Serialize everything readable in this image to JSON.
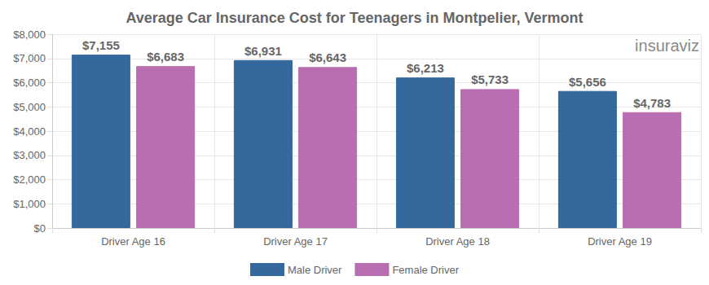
{
  "chart_data": {
    "type": "bar",
    "title": "Average Car Insurance Cost for Teenagers in Montpelier, Vermont",
    "annotations": [
      "insuraviz"
    ],
    "categories": [
      "Driver Age 16",
      "Driver Age 17",
      "Driver Age 18",
      "Driver Age 19"
    ],
    "series": [
      {
        "name": "Male Driver",
        "color": "#35699d",
        "values": [
          7155,
          6931,
          6213,
          5656
        ],
        "value_labels": [
          "$7,155",
          "$6,931",
          "$6,213",
          "$5,656"
        ]
      },
      {
        "name": "Female Driver",
        "color": "#b86eb0",
        "values": [
          6683,
          6643,
          5733,
          4783
        ],
        "value_labels": [
          "$6,683",
          "$6,643",
          "$5,733",
          "$4,783"
        ]
      }
    ],
    "ylim": [
      0,
      8000
    ],
    "yticks": [
      {
        "value": 0,
        "label": "$0"
      },
      {
        "value": 1000,
        "label": "$1,000"
      },
      {
        "value": 2000,
        "label": "$2,000"
      },
      {
        "value": 3000,
        "label": "$3,000"
      },
      {
        "value": 4000,
        "label": "$4,000"
      },
      {
        "value": 5000,
        "label": "$5,000"
      },
      {
        "value": 6000,
        "label": "$6,000"
      },
      {
        "value": 7000,
        "label": "$7,000"
      },
      {
        "value": 8000,
        "label": "$8,000"
      }
    ],
    "grid": true,
    "legend": "bottom",
    "data_labels": true
  }
}
